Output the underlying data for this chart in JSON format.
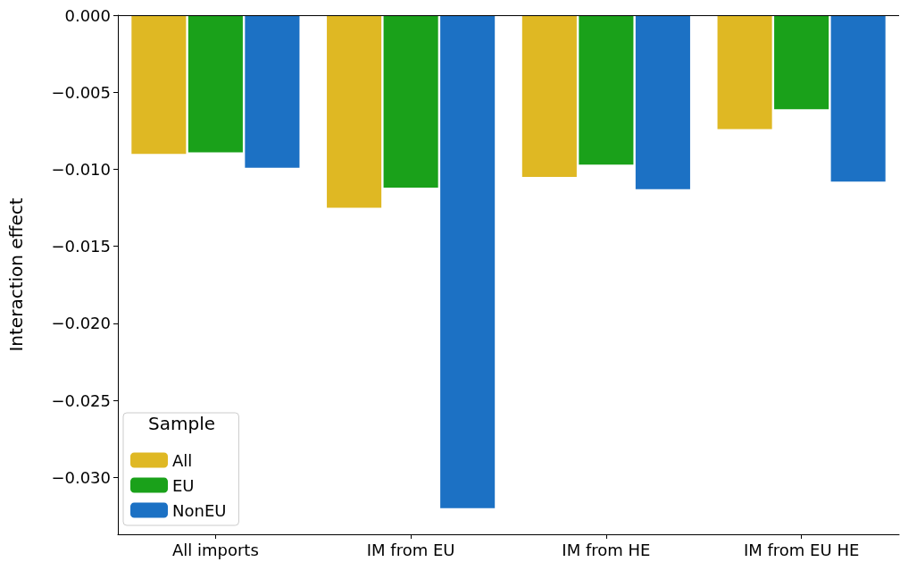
{
  "chart_data": {
    "type": "bar",
    "ylabel": "Interaction effect",
    "legend_title": "Sample",
    "legend": "bottom left",
    "grid": false,
    "categories": [
      "All imports",
      "IM from EU",
      "IM from HE",
      "IM from EU HE"
    ],
    "series": [
      {
        "name": "All",
        "color": "#dfb823",
        "values": [
          -0.009,
          -0.0125,
          -0.0105,
          -0.0074
        ]
      },
      {
        "name": "EU",
        "color": "#1aa11a",
        "values": [
          -0.0089,
          -0.0112,
          -0.0097,
          -0.0061
        ]
      },
      {
        "name": "NonEU",
        "color": "#1c71c4",
        "values": [
          -0.0099,
          -0.032,
          -0.0113,
          -0.0108
        ]
      }
    ],
    "ylim": [
      -0.0337,
      0
    ],
    "yticks": [
      {
        "value": 0,
        "label": "0.000"
      },
      {
        "value": -0.005,
        "label": "−0.005"
      },
      {
        "value": -0.01,
        "label": "−0.010"
      },
      {
        "value": -0.015,
        "label": "−0.015"
      },
      {
        "value": -0.02,
        "label": "−0.020"
      },
      {
        "value": -0.025,
        "label": "−0.025"
      },
      {
        "value": -0.03,
        "label": "−0.030"
      }
    ],
    "ref_lines": [
      {
        "axis": "y",
        "value": 0,
        "color": "#000000"
      }
    ]
  }
}
